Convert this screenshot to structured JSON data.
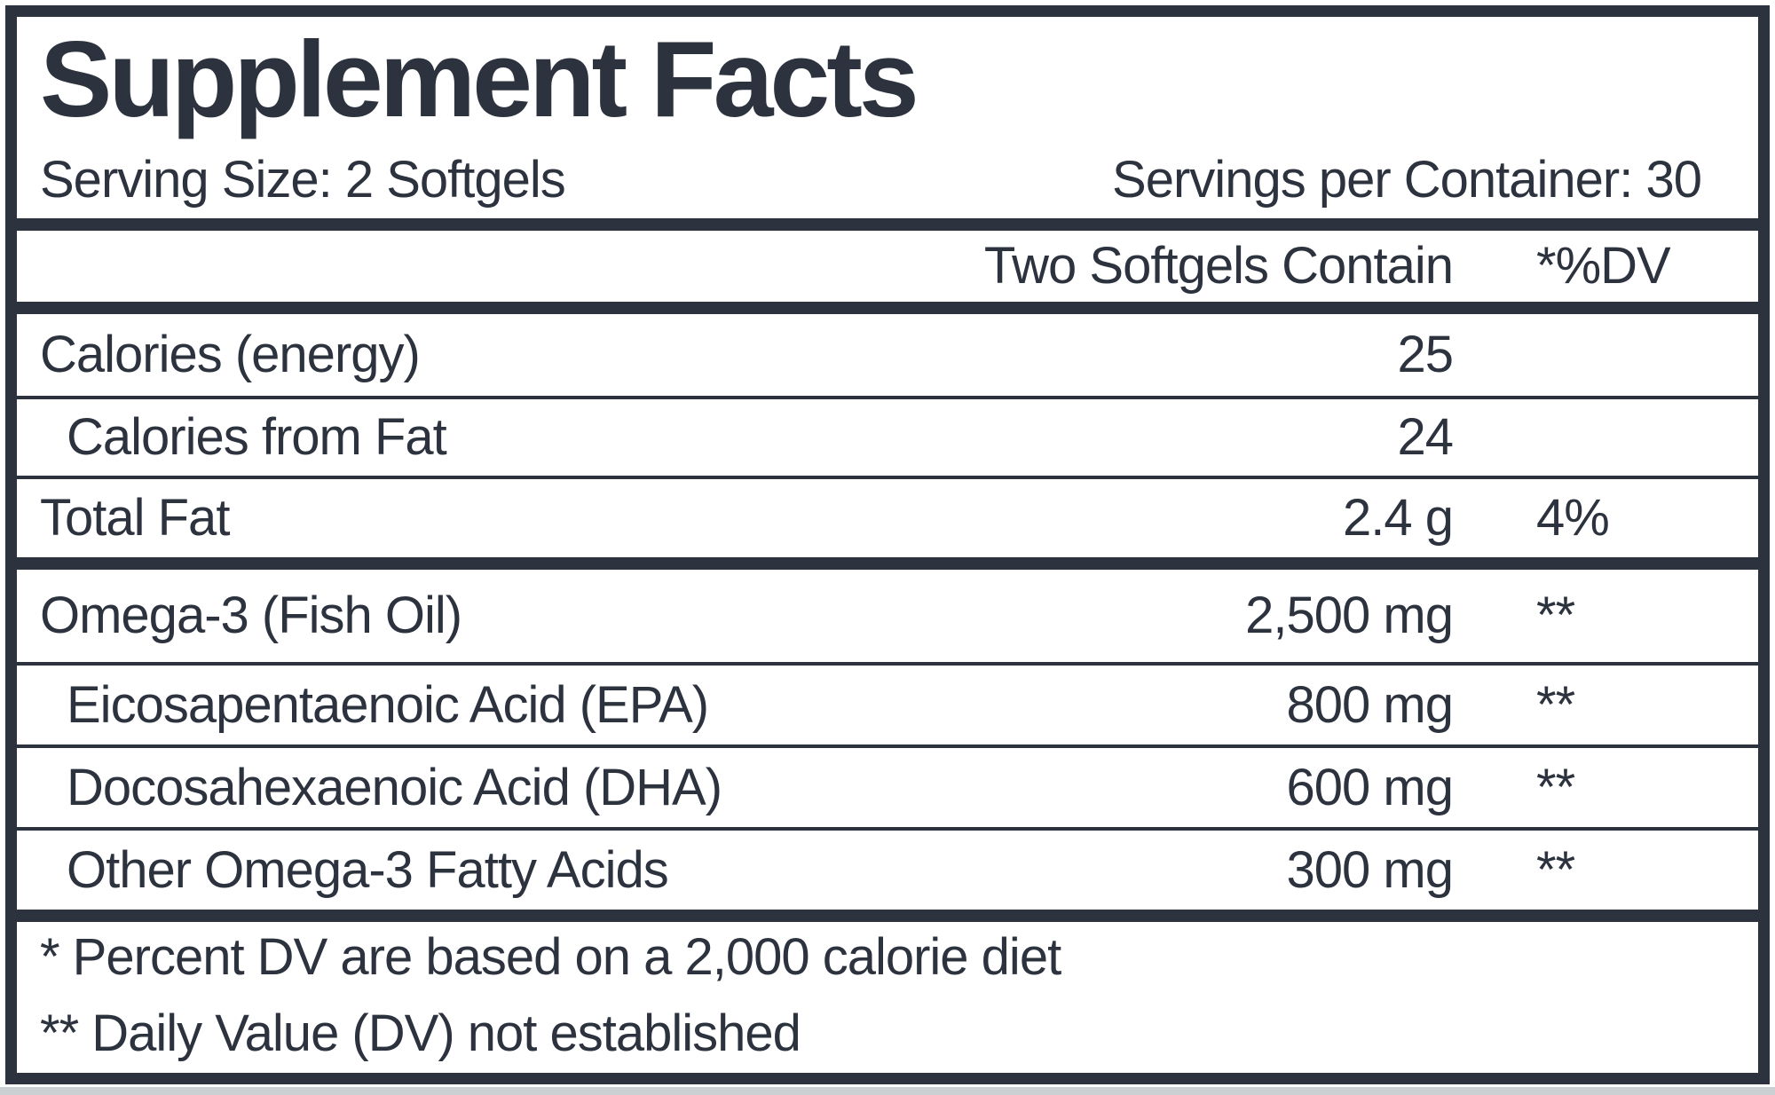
{
  "label": {
    "title": "Supplement Facts",
    "serving_size": "Serving Size: 2 Softgels",
    "servings_per_container": "Servings per Container: 30",
    "column_header": {
      "amount": "Two Softgels Contain",
      "dv": "*%DV"
    },
    "nutrition_rows": [
      {
        "name": "Calories (energy)",
        "amount": "25",
        "dv": ""
      },
      {
        "name": "Calories from Fat",
        "amount": "24",
        "dv": ""
      },
      {
        "name": "Total Fat",
        "amount": "2.4 g",
        "dv": "4%"
      }
    ],
    "omega_rows": [
      {
        "name": "Omega-3 (Fish Oil)",
        "amount": "2,500 mg",
        "dv": "**"
      },
      {
        "name": "Eicosapentaenoic Acid (EPA)",
        "amount": "800 mg",
        "dv": "**"
      },
      {
        "name": "Docosahexaenoic Acid (DHA)",
        "amount": "600 mg",
        "dv": "**"
      },
      {
        "name": "Other Omega-3 Fatty Acids",
        "amount": "300 mg",
        "dv": "**"
      }
    ],
    "footnotes": [
      "* Percent DV are based on a 2,000 calorie diet",
      "** Daily Value (DV) not established"
    ],
    "colors": {
      "ink": "#2d333e",
      "background": "#ffffff",
      "page_edge": "#cdd0d3"
    }
  }
}
